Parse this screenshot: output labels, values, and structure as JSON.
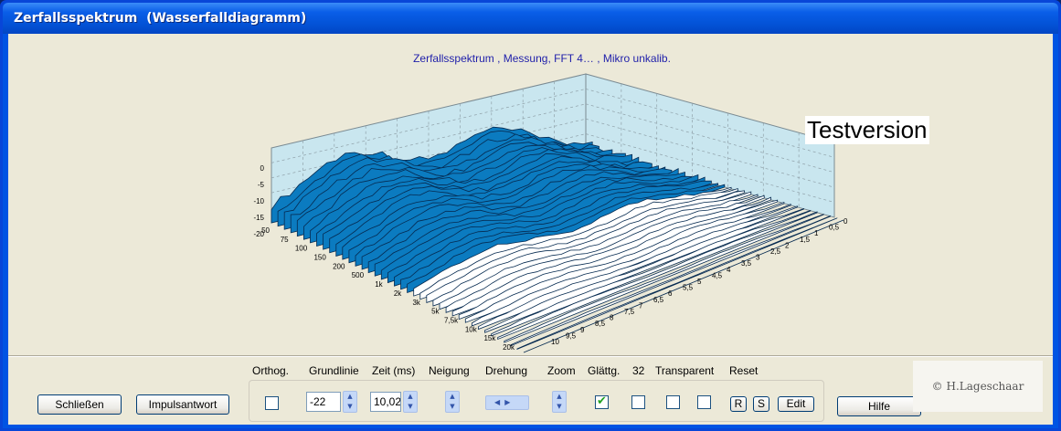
{
  "window": {
    "title": "Zerfallsspektrum  (Wasserfalldiagramm)"
  },
  "chart": {
    "title": "Zerfallsspektrum , Messung, FFT 4…         , Mikro unkalib.",
    "watermark": "Testversion",
    "z_ticks": [
      "0",
      "-5",
      "-10",
      "-15",
      "-20"
    ],
    "freq_ticks": [
      "50",
      "75",
      "100",
      "150",
      "200",
      "500",
      "1k",
      "2k",
      "3k",
      "5k",
      "7,5k",
      "10k",
      "15k",
      "20k"
    ],
    "time_ticks": [
      "0",
      "0,5",
      "1",
      "1,5",
      "2",
      "2,5",
      "3",
      "3,5",
      "4",
      "4,5",
      "5",
      "5,5",
      "6",
      "6,5",
      "7",
      "7,5",
      "8",
      "8,5",
      "9",
      "9,5",
      "10"
    ],
    "colors": {
      "surface": "#0b7bc0",
      "wall": "#c9e6ef",
      "grid": "#8fa0a8"
    }
  },
  "buttons": {
    "close": "Schließen",
    "impulse": "Impulsantwort",
    "help": "Hilfe"
  },
  "controls": {
    "labels": {
      "orthog": "Orthog.",
      "baseline": "Grundlinie",
      "time": "Zeit (ms)",
      "tilt": "Neigung",
      "rotation": "Drehung",
      "zoom": "Zoom",
      "smoothing": "Glättg.",
      "n32": "32",
      "transparent": "Transparent",
      "reset": "Reset"
    },
    "baseline_value": "-22",
    "time_value": "10,02",
    "smoothing_checked": true,
    "reset_buttons": {
      "r": "R",
      "s": "S",
      "edit": "Edit"
    }
  },
  "copyright": "© H.Lageschaar"
}
